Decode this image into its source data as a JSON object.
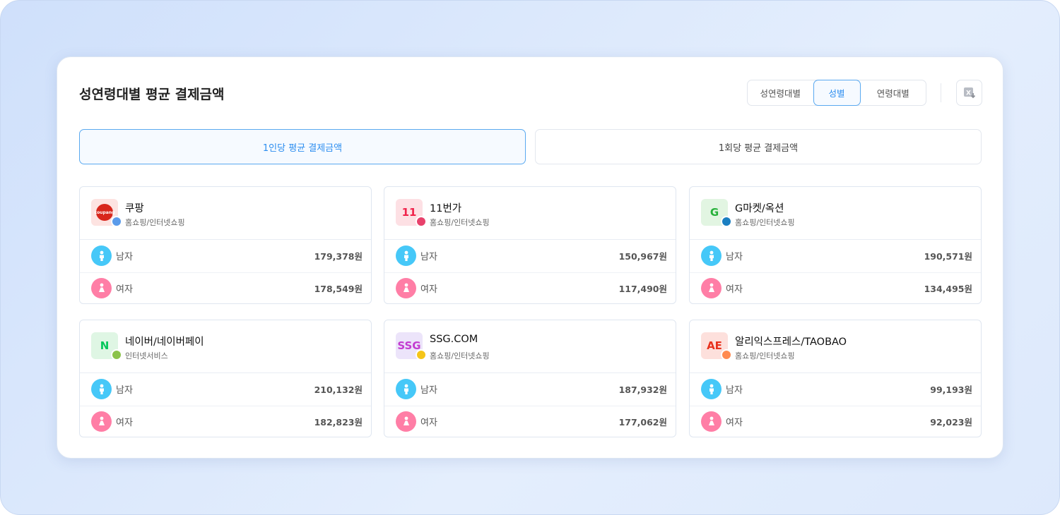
{
  "header": {
    "title": "성연령대별 평균 결제금액",
    "segments": [
      "성연령대별",
      "성별",
      "연령대별"
    ],
    "active_segment": "성별",
    "excel_icon": "excel-download-icon"
  },
  "tabs": [
    "1인당 평균 결제금액",
    "1회당 평균 결제금액"
  ],
  "colors": {
    "accent": "#2d8ef0",
    "male": "#46c8f8",
    "female": "#ff7ea6"
  },
  "cards": [
    {
      "name": "쿠팡",
      "category": "홈쇼핑/인터넷쇼핑",
      "dot": "#5b9bea",
      "logo_bg": "#fde3e1",
      "logo_fg": "#d8261c",
      "logo_text": "coupang",
      "rows": [
        {
          "label": "남자",
          "value": "179,378원"
        },
        {
          "label": "여자",
          "value": "178,549원"
        }
      ]
    },
    {
      "name": "11번가",
      "category": "홈쇼핑/인터넷쇼핑",
      "dot": "#e8416b",
      "logo_bg": "#fde0e4",
      "logo_fg": "#f0224a",
      "logo_text": "11",
      "rows": [
        {
          "label": "남자",
          "value": "150,967원"
        },
        {
          "label": "여자",
          "value": "117,490원"
        }
      ]
    },
    {
      "name": "G마켓/옥션",
      "category": "홈쇼핑/인터넷쇼핑",
      "dot": "#1a7fc1",
      "logo_bg": "#e2f5e2",
      "logo_fg": "#27b13a",
      "logo_text": "G",
      "rows": [
        {
          "label": "남자",
          "value": "190,571원"
        },
        {
          "label": "여자",
          "value": "134,495원"
        }
      ]
    },
    {
      "name": "네이버/네이버페이",
      "category": "인터넷서비스",
      "dot": "#8bc34a",
      "logo_bg": "#dff6e4",
      "logo_fg": "#03c75a",
      "logo_text": "N",
      "rows": [
        {
          "label": "남자",
          "value": "210,132원"
        },
        {
          "label": "여자",
          "value": "182,823원"
        }
      ]
    },
    {
      "name": "SSG.COM",
      "category": "홈쇼핑/인터넷쇼핑",
      "dot": "#f5c518",
      "logo_bg": "#ece4fa",
      "logo_fg": "#c33cd0",
      "logo_text": "SSG",
      "rows": [
        {
          "label": "남자",
          "value": "187,932원"
        },
        {
          "label": "여자",
          "value": "177,062원"
        }
      ]
    },
    {
      "name": "알리익스프레스/TAOBAO",
      "category": "홈쇼핑/인터넷쇼핑",
      "dot": "#ff8a50",
      "logo_bg": "#fde0dc",
      "logo_fg": "#e8321e",
      "logo_text": "AE",
      "rows": [
        {
          "label": "남자",
          "value": "99,193원"
        },
        {
          "label": "여자",
          "value": "92,023원"
        }
      ]
    }
  ]
}
